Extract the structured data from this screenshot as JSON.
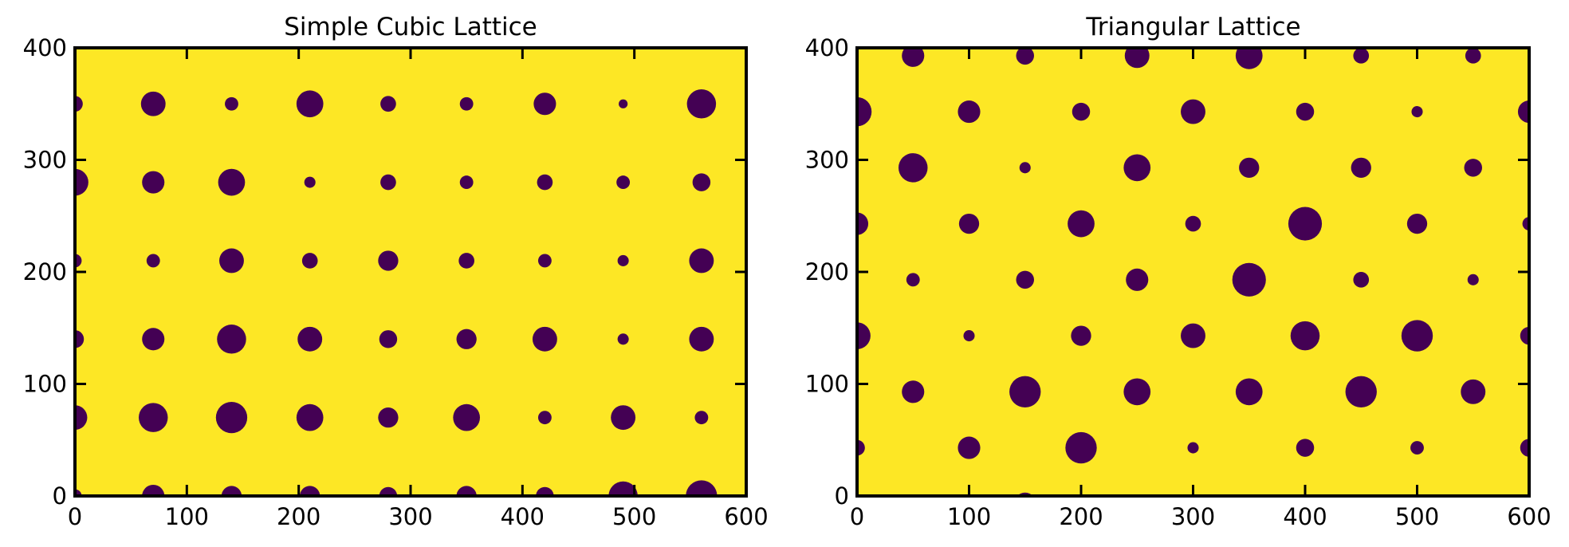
{
  "chart_data": [
    {
      "type": "scatter",
      "title": "Simple Cubic Lattice",
      "xlim": [
        0,
        600
      ],
      "ylim": [
        0,
        400
      ],
      "xticks": [
        "0",
        "100",
        "200",
        "300",
        "400",
        "500",
        "600"
      ],
      "yticks": [
        "0",
        "100",
        "200",
        "300",
        "400"
      ],
      "background_color": "#fde725",
      "marker_color": "#440154",
      "points": [
        {
          "x": 0,
          "y": 0,
          "r": 6
        },
        {
          "x": 70,
          "y": 0,
          "r": 10
        },
        {
          "x": 140,
          "y": 0,
          "r": 9
        },
        {
          "x": 210,
          "y": 0,
          "r": 9
        },
        {
          "x": 280,
          "y": 0,
          "r": 8
        },
        {
          "x": 350,
          "y": 0,
          "r": 9
        },
        {
          "x": 420,
          "y": 0,
          "r": 8
        },
        {
          "x": 490,
          "y": 0,
          "r": 13
        },
        {
          "x": 560,
          "y": 0,
          "r": 14
        },
        {
          "x": 0,
          "y": 70,
          "r": 11
        },
        {
          "x": 70,
          "y": 70,
          "r": 13
        },
        {
          "x": 140,
          "y": 70,
          "r": 14
        },
        {
          "x": 210,
          "y": 70,
          "r": 12
        },
        {
          "x": 280,
          "y": 70,
          "r": 9
        },
        {
          "x": 350,
          "y": 70,
          "r": 12
        },
        {
          "x": 420,
          "y": 70,
          "r": 6
        },
        {
          "x": 490,
          "y": 70,
          "r": 11
        },
        {
          "x": 560,
          "y": 70,
          "r": 6
        },
        {
          "x": 0,
          "y": 140,
          "r": 8
        },
        {
          "x": 70,
          "y": 140,
          "r": 10
        },
        {
          "x": 140,
          "y": 140,
          "r": 13
        },
        {
          "x": 210,
          "y": 140,
          "r": 11
        },
        {
          "x": 280,
          "y": 140,
          "r": 8
        },
        {
          "x": 350,
          "y": 140,
          "r": 9
        },
        {
          "x": 420,
          "y": 140,
          "r": 11
        },
        {
          "x": 490,
          "y": 140,
          "r": 5
        },
        {
          "x": 560,
          "y": 140,
          "r": 11
        },
        {
          "x": 0,
          "y": 210,
          "r": 6
        },
        {
          "x": 70,
          "y": 210,
          "r": 6
        },
        {
          "x": 140,
          "y": 210,
          "r": 11
        },
        {
          "x": 210,
          "y": 210,
          "r": 7
        },
        {
          "x": 280,
          "y": 210,
          "r": 9
        },
        {
          "x": 350,
          "y": 210,
          "r": 7
        },
        {
          "x": 420,
          "y": 210,
          "r": 6
        },
        {
          "x": 490,
          "y": 210,
          "r": 5
        },
        {
          "x": 560,
          "y": 210,
          "r": 11
        },
        {
          "x": 0,
          "y": 280,
          "r": 12
        },
        {
          "x": 70,
          "y": 280,
          "r": 10
        },
        {
          "x": 140,
          "y": 280,
          "r": 12
        },
        {
          "x": 210,
          "y": 280,
          "r": 5
        },
        {
          "x": 280,
          "y": 280,
          "r": 7
        },
        {
          "x": 350,
          "y": 280,
          "r": 6
        },
        {
          "x": 420,
          "y": 280,
          "r": 7
        },
        {
          "x": 490,
          "y": 280,
          "r": 6
        },
        {
          "x": 560,
          "y": 280,
          "r": 8
        },
        {
          "x": 0,
          "y": 350,
          "r": 7
        },
        {
          "x": 70,
          "y": 350,
          "r": 11
        },
        {
          "x": 140,
          "y": 350,
          "r": 6
        },
        {
          "x": 210,
          "y": 350,
          "r": 12
        },
        {
          "x": 280,
          "y": 350,
          "r": 7
        },
        {
          "x": 350,
          "y": 350,
          "r": 6
        },
        {
          "x": 420,
          "y": 350,
          "r": 10
        },
        {
          "x": 490,
          "y": 350,
          "r": 4
        },
        {
          "x": 560,
          "y": 350,
          "r": 13
        }
      ]
    },
    {
      "type": "scatter",
      "title": "Triangular Lattice",
      "xlim": [
        0,
        600
      ],
      "ylim": [
        0,
        400
      ],
      "xticks": [
        "0",
        "100",
        "200",
        "300",
        "400",
        "500",
        "600"
      ],
      "yticks": [
        "0",
        "100",
        "200",
        "300",
        "400"
      ],
      "background_color": "#fde725",
      "marker_color": "#440154",
      "points": [
        {
          "x": 0,
          "y": 43,
          "r": 7
        },
        {
          "x": 100,
          "y": 43,
          "r": 10
        },
        {
          "x": 200,
          "y": 43,
          "r": 14
        },
        {
          "x": 300,
          "y": 43,
          "r": 5
        },
        {
          "x": 400,
          "y": 43,
          "r": 8
        },
        {
          "x": 500,
          "y": 43,
          "r": 6
        },
        {
          "x": 600,
          "y": 43,
          "r": 8
        },
        {
          "x": 0,
          "y": 143,
          "r": 12
        },
        {
          "x": 100,
          "y": 143,
          "r": 5
        },
        {
          "x": 200,
          "y": 143,
          "r": 9
        },
        {
          "x": 300,
          "y": 143,
          "r": 11
        },
        {
          "x": 400,
          "y": 143,
          "r": 13
        },
        {
          "x": 500,
          "y": 143,
          "r": 14
        },
        {
          "x": 600,
          "y": 143,
          "r": 8
        },
        {
          "x": 0,
          "y": 243,
          "r": 10
        },
        {
          "x": 100,
          "y": 243,
          "r": 9
        },
        {
          "x": 200,
          "y": 243,
          "r": 12
        },
        {
          "x": 300,
          "y": 243,
          "r": 7
        },
        {
          "x": 400,
          "y": 243,
          "r": 15
        },
        {
          "x": 500,
          "y": 243,
          "r": 9
        },
        {
          "x": 600,
          "y": 243,
          "r": 6
        },
        {
          "x": 0,
          "y": 343,
          "r": 13
        },
        {
          "x": 100,
          "y": 343,
          "r": 10
        },
        {
          "x": 200,
          "y": 343,
          "r": 8
        },
        {
          "x": 300,
          "y": 343,
          "r": 11
        },
        {
          "x": 400,
          "y": 343,
          "r": 8
        },
        {
          "x": 500,
          "y": 343,
          "r": 5
        },
        {
          "x": 600,
          "y": 343,
          "r": 10
        },
        {
          "x": 50,
          "y": 93,
          "r": 10
        },
        {
          "x": 150,
          "y": 93,
          "r": 14
        },
        {
          "x": 250,
          "y": 93,
          "r": 12
        },
        {
          "x": 350,
          "y": 93,
          "r": 12
        },
        {
          "x": 450,
          "y": 93,
          "r": 14
        },
        {
          "x": 550,
          "y": 93,
          "r": 11
        },
        {
          "x": 50,
          "y": 193,
          "r": 6
        },
        {
          "x": 150,
          "y": 193,
          "r": 8
        },
        {
          "x": 250,
          "y": 193,
          "r": 10
        },
        {
          "x": 350,
          "y": 193,
          "r": 15
        },
        {
          "x": 450,
          "y": 193,
          "r": 7
        },
        {
          "x": 550,
          "y": 193,
          "r": 5
        },
        {
          "x": 50,
          "y": 293,
          "r": 13
        },
        {
          "x": 150,
          "y": 293,
          "r": 5
        },
        {
          "x": 250,
          "y": 293,
          "r": 12
        },
        {
          "x": 350,
          "y": 293,
          "r": 9
        },
        {
          "x": 450,
          "y": 293,
          "r": 9
        },
        {
          "x": 550,
          "y": 293,
          "r": 8
        },
        {
          "x": 50,
          "y": 393,
          "r": 10
        },
        {
          "x": 150,
          "y": 393,
          "r": 8
        },
        {
          "x": 250,
          "y": 393,
          "r": 11
        },
        {
          "x": 350,
          "y": 393,
          "r": 12
        },
        {
          "x": 450,
          "y": 393,
          "r": 7
        },
        {
          "x": 550,
          "y": 393,
          "r": 7
        },
        {
          "x": 150,
          "y": -7,
          "r": 10
        },
        {
          "x": 250,
          "y": -7,
          "r": 7
        },
        {
          "x": 550,
          "y": -7,
          "r": 3
        }
      ]
    }
  ]
}
